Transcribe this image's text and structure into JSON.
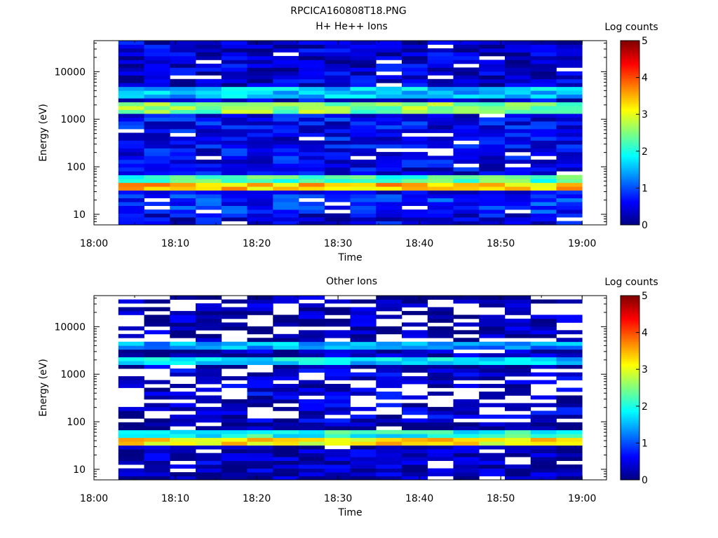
{
  "figure": {
    "title": "RPCICA160808T18.PNG"
  },
  "chart_data": [
    {
      "type": "heatmap",
      "title": "H+ He++ Ions",
      "xlabel": "Time",
      "ylabel": "Energy (eV)",
      "x_ticks": [
        "18:00",
        "18:10",
        "18:20",
        "18:30",
        "18:40",
        "18:50",
        "19:00"
      ],
      "x_range": [
        "18:00",
        "19:03"
      ],
      "y_scale": "log",
      "y_ticks": [
        "10",
        "100",
        "1000",
        "10000"
      ],
      "y_range": [
        6,
        45000
      ],
      "data_time_range": [
        "18:03",
        "19:00"
      ],
      "time_bins": 18,
      "energy_bins": 48,
      "colorbar": {
        "label": "Log counts",
        "range": [
          0,
          5
        ],
        "ticks": [
          "0",
          "1",
          "2",
          "3",
          "4",
          "5"
        ]
      },
      "energy_bands_log_counts": [
        {
          "energy_eV": [
            6,
            10
          ],
          "log_counts": 0.5
        },
        {
          "energy_eV": [
            10,
            25
          ],
          "log_counts": 0.8
        },
        {
          "energy_eV": [
            30,
            50
          ],
          "log_counts": 3.4
        },
        {
          "energy_eV": [
            50,
            70
          ],
          "log_counts": 2.2
        },
        {
          "energy_eV": [
            100,
            1200
          ],
          "log_counts": 0.6
        },
        {
          "energy_eV": [
            1200,
            2500
          ],
          "log_counts": 2.5
        },
        {
          "energy_eV": [
            3000,
            4500
          ],
          "log_counts": 1.6
        },
        {
          "energy_eV": [
            5000,
            45000
          ],
          "log_counts": 0.4
        }
      ]
    },
    {
      "type": "heatmap",
      "title": "Other Ions",
      "xlabel": "Time",
      "ylabel": "Energy (eV)",
      "x_ticks": [
        "18:00",
        "18:10",
        "18:20",
        "18:30",
        "18:40",
        "18:50",
        "19:00"
      ],
      "x_range": [
        "18:00",
        "19:03"
      ],
      "y_scale": "log",
      "y_ticks": [
        "10",
        "100",
        "1000",
        "10000"
      ],
      "y_range": [
        6,
        45000
      ],
      "data_time_range": [
        "18:03",
        "19:00"
      ],
      "time_bins": 18,
      "energy_bins": 48,
      "colorbar": {
        "label": "Log counts",
        "range": [
          0,
          5
        ],
        "ticks": [
          "0",
          "1",
          "2",
          "3",
          "4",
          "5"
        ]
      },
      "energy_bands_log_counts": [
        {
          "energy_eV": [
            10,
            25
          ],
          "log_counts": 0.3
        },
        {
          "energy_eV": [
            30,
            50
          ],
          "log_counts": 3.2
        },
        {
          "energy_eV": [
            50,
            70
          ],
          "log_counts": 2.0
        },
        {
          "energy_eV": [
            100,
            1200
          ],
          "log_counts": 0.4
        },
        {
          "energy_eV": [
            1500,
            2200
          ],
          "log_counts": 1.7
        },
        {
          "energy_eV": [
            3500,
            4500
          ],
          "log_counts": 1.4
        },
        {
          "energy_eV": [
            5000,
            45000
          ],
          "log_counts": 0.2
        }
      ]
    }
  ]
}
